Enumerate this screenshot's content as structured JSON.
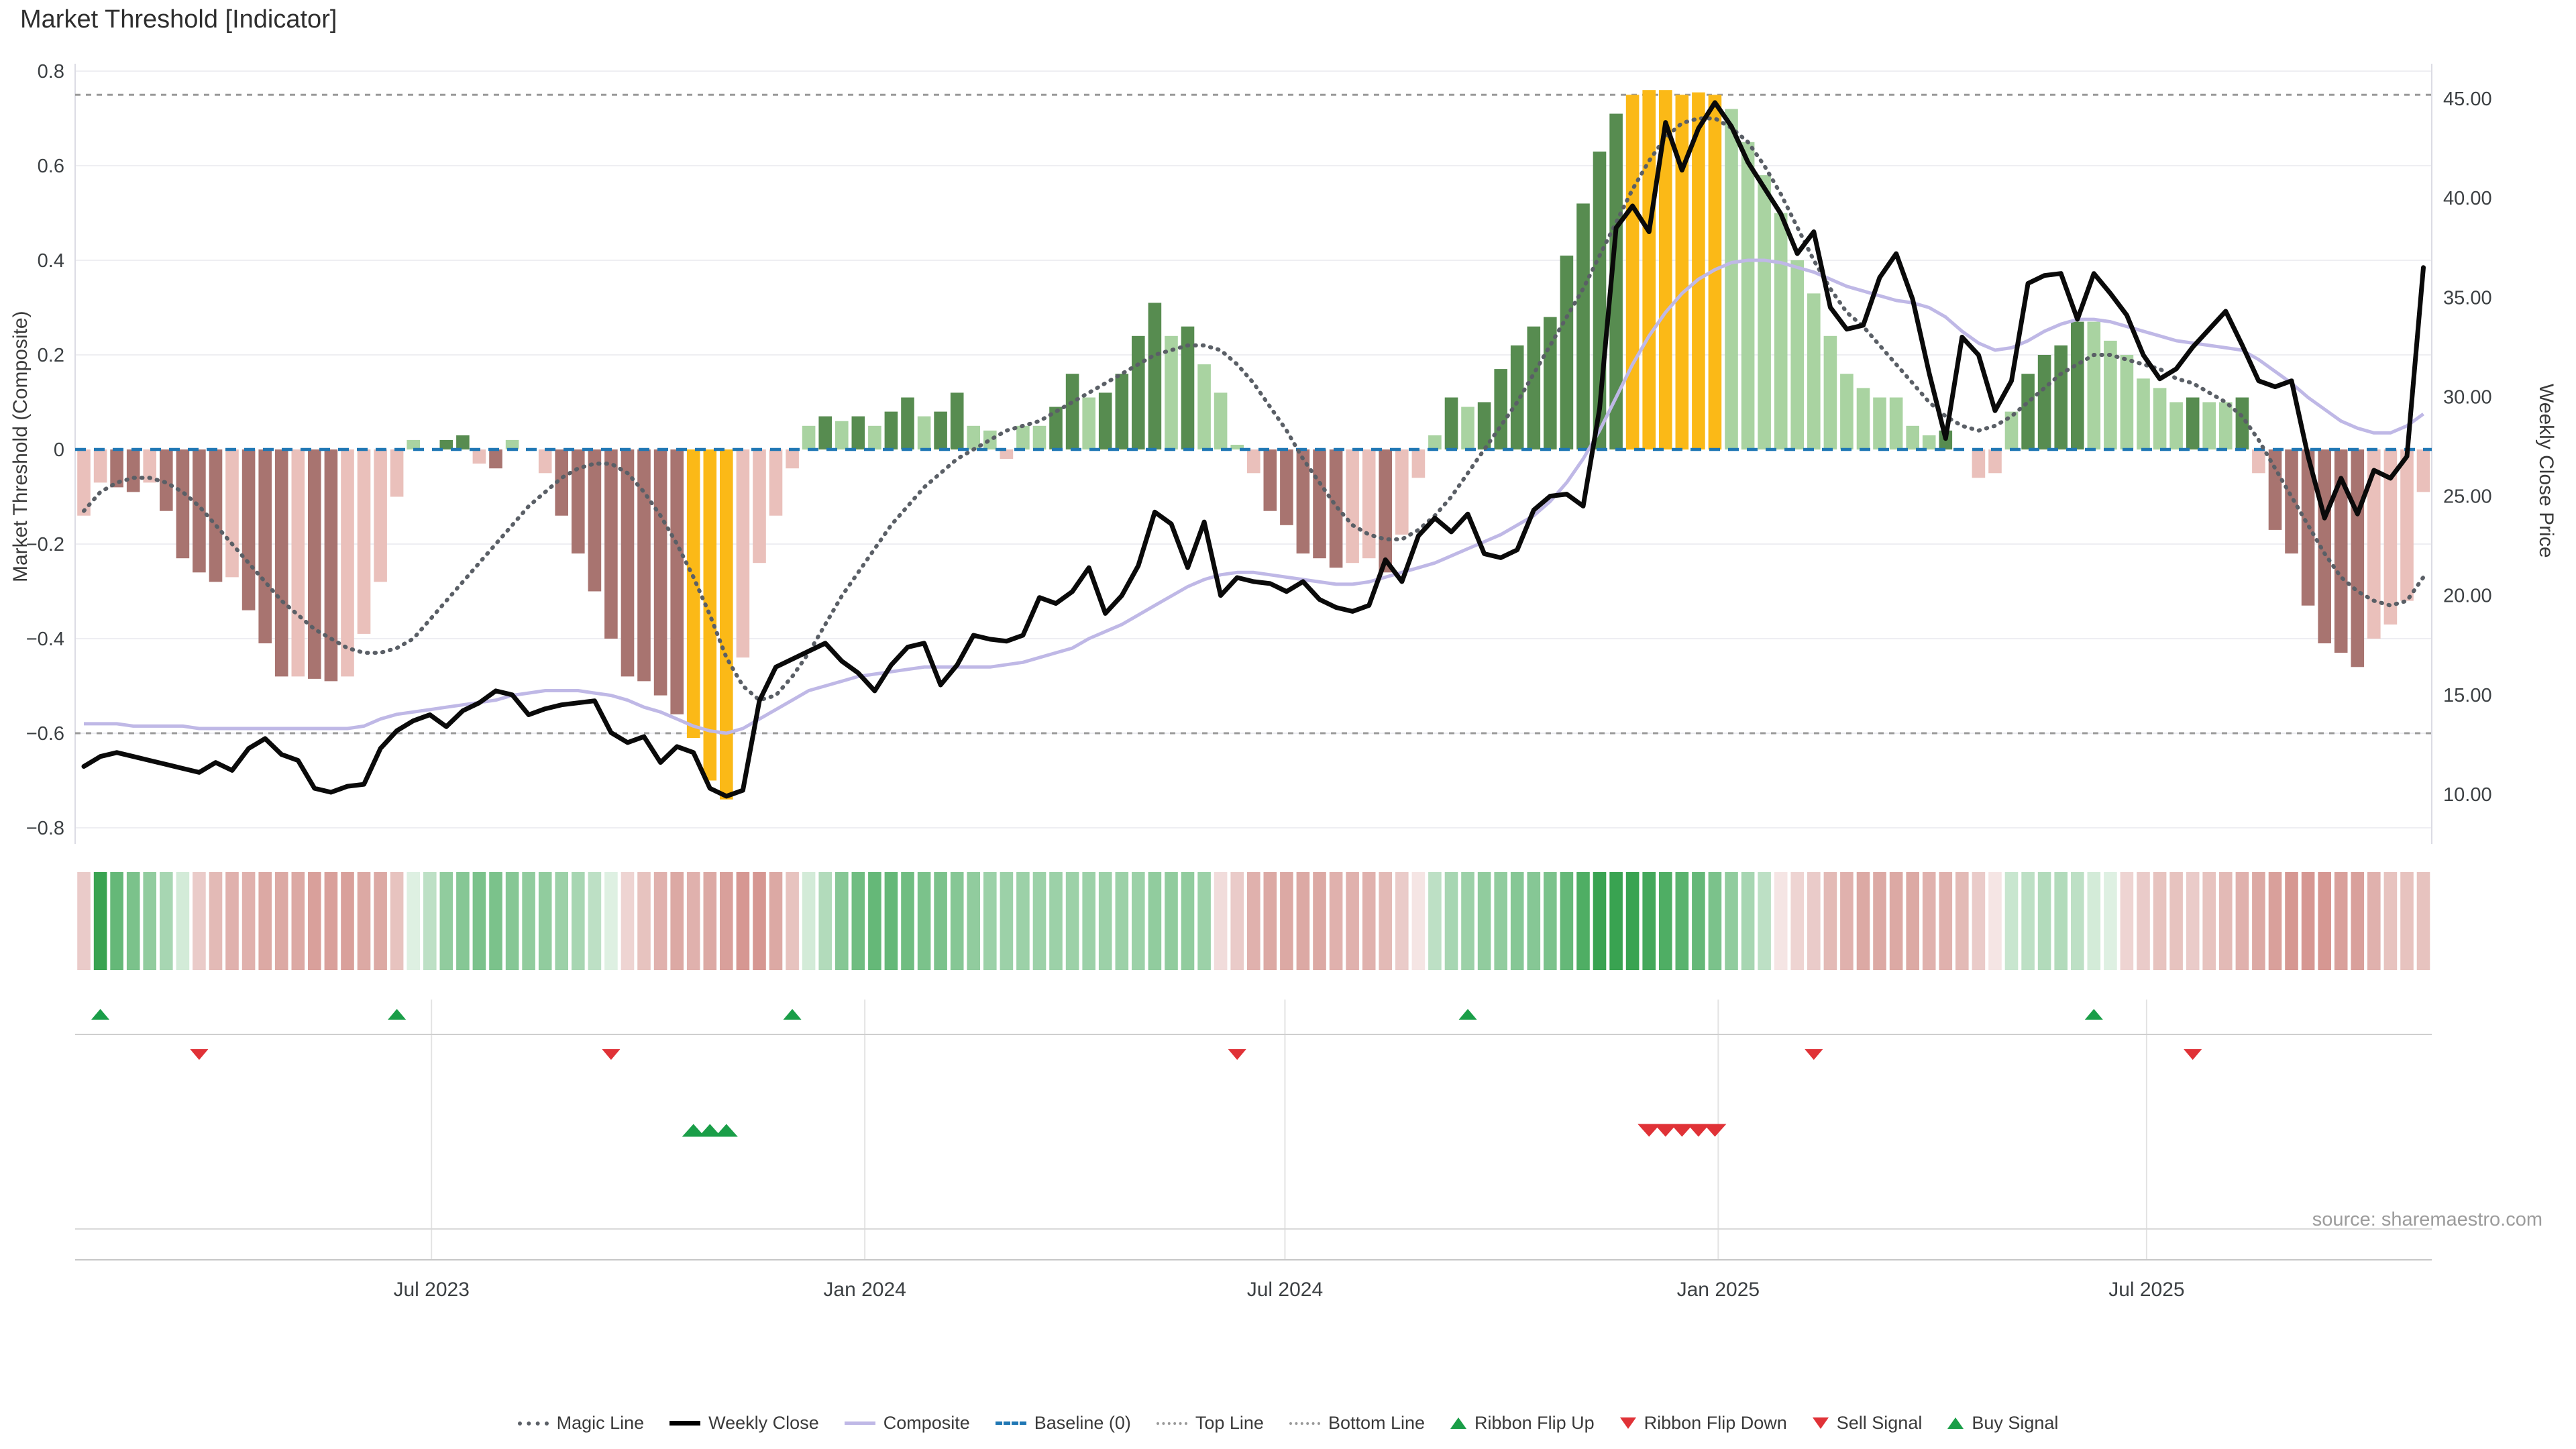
{
  "title": "Market Threshold [Indicator]",
  "source": "source: sharemaestro.com",
  "axes": {
    "left_title": "Market Threshold (Composite)",
    "right_title": "Weekly Close Price",
    "left_ticks": [
      {
        "label": "0.8",
        "value": 0.8
      },
      {
        "label": "0.6",
        "value": 0.6
      },
      {
        "label": "0.4",
        "value": 0.4
      },
      {
        "label": "0.2",
        "value": 0.2
      },
      {
        "label": "0",
        "value": 0
      },
      {
        "label": "−0.2",
        "value": -0.2
      },
      {
        "label": "−0.4",
        "value": -0.4
      },
      {
        "label": "−0.6",
        "value": -0.6
      },
      {
        "label": "−0.8",
        "value": -0.8
      }
    ],
    "right_ticks": [
      {
        "label": "45.00",
        "value": 45
      },
      {
        "label": "40.00",
        "value": 40
      },
      {
        "label": "35.00",
        "value": 35
      },
      {
        "label": "30.00",
        "value": 30
      },
      {
        "label": "25.00",
        "value": 25
      },
      {
        "label": "20.00",
        "value": 20
      },
      {
        "label": "15.00",
        "value": 15
      },
      {
        "label": "10.00",
        "value": 10
      }
    ],
    "x_ticks": [
      {
        "label": "Jul 2023",
        "week": 21.1
      },
      {
        "label": "Jan 2024",
        "week": 47.4
      },
      {
        "label": "Jul 2024",
        "week": 72.9
      },
      {
        "label": "Jan 2025",
        "week": 99.2
      },
      {
        "label": "Jul 2025",
        "week": 125.2
      }
    ],
    "left_range": [
      -0.8,
      0.8
    ],
    "right_range": [
      10,
      45
    ]
  },
  "colors": {
    "gold": "#fbb917",
    "pos_dark": "#578c50",
    "pos_light": "#a9d3a1",
    "neg_dark": "#a87470",
    "neg_light": "#eac0bb",
    "ribbon_green": "#2e9e47",
    "ribbon_red": "#bf5f57",
    "baseline_blue": "#1f77b4",
    "magic_gray": "#5a5f66",
    "line_gray": "#9a9a9a",
    "composite_purple": "#bfb8e6",
    "weekly_black": "#0a0a0a",
    "signal_green": "#1a9e48",
    "signal_red": "#e03237"
  },
  "chart_data": {
    "type": "bar",
    "note": "weekly combo chart: composite indicator bars (left axis) + price/indicator lines (right/left axes)",
    "top_line": 0.75,
    "bottom_line": -0.6,
    "baseline": 0,
    "composite_bars": [
      -0.14,
      -0.07,
      -0.08,
      -0.09,
      -0.07,
      -0.13,
      -0.23,
      -0.26,
      -0.28,
      -0.27,
      -0.34,
      -0.41,
      -0.48,
      -0.48,
      -0.485,
      -0.49,
      -0.48,
      -0.39,
      -0.28,
      -0.1,
      0.02,
      0.0,
      0.02,
      0.03,
      -0.03,
      -0.04,
      0.02,
      0.0,
      -0.05,
      -0.14,
      -0.22,
      -0.3,
      -0.4,
      -0.48,
      -0.49,
      -0.52,
      -0.56,
      -0.61,
      -0.7,
      -0.74,
      -0.44,
      -0.24,
      -0.14,
      -0.04,
      0.05,
      0.07,
      0.06,
      0.07,
      0.05,
      0.08,
      0.11,
      0.07,
      0.08,
      0.12,
      0.05,
      0.04,
      -0.02,
      0.05,
      0.05,
      0.09,
      0.16,
      0.11,
      0.12,
      0.16,
      0.24,
      0.31,
      0.24,
      0.26,
      0.18,
      0.12,
      0.01,
      -0.05,
      -0.13,
      -0.16,
      -0.22,
      -0.23,
      -0.25,
      -0.24,
      -0.23,
      -0.26,
      -0.18,
      -0.06,
      0.03,
      0.11,
      0.09,
      0.1,
      0.17,
      0.22,
      0.26,
      0.28,
      0.41,
      0.52,
      0.63,
      0.71,
      0.75,
      0.76,
      0.76,
      0.75,
      0.755,
      0.75,
      0.72,
      0.65,
      0.58,
      0.5,
      0.4,
      0.33,
      0.24,
      0.16,
      0.13,
      0.11,
      0.11,
      0.05,
      0.03,
      0.04,
      0.0,
      -0.06,
      -0.05,
      0.08,
      0.16,
      0.2,
      0.22,
      0.27,
      0.27,
      0.23,
      0.2,
      0.15,
      0.13,
      0.1,
      0.11,
      0.1,
      0.1,
      0.11,
      -0.05,
      -0.17,
      -0.22,
      -0.33,
      -0.41,
      -0.43,
      -0.46,
      -0.4,
      -0.37,
      -0.32,
      -0.09
    ],
    "weekly_close": [
      11.4,
      11.9,
      12.1,
      11.9,
      11.7,
      11.5,
      11.3,
      11.1,
      11.6,
      11.2,
      12.3,
      12.8,
      12.0,
      11.7,
      10.3,
      10.1,
      10.4,
      10.5,
      12.3,
      13.2,
      13.7,
      14.0,
      13.4,
      14.2,
      14.6,
      15.2,
      15.0,
      14.0,
      14.3,
      14.5,
      14.6,
      14.7,
      13.1,
      12.6,
      12.9,
      11.6,
      12.4,
      12.1,
      10.3,
      9.9,
      10.2,
      14.7,
      16.4,
      16.8,
      17.2,
      17.6,
      16.7,
      16.1,
      15.2,
      16.5,
      17.4,
      17.6,
      15.5,
      16.5,
      18.0,
      17.8,
      17.7,
      18.0,
      19.9,
      19.6,
      20.2,
      21.4,
      19.1,
      20.0,
      21.5,
      24.2,
      23.6,
      21.4,
      23.7,
      20.0,
      20.9,
      20.7,
      20.6,
      20.2,
      20.7,
      19.8,
      19.4,
      19.2,
      19.5,
      21.8,
      20.7,
      23.0,
      23.9,
      23.2,
      24.1,
      22.1,
      21.9,
      22.3,
      24.3,
      25.0,
      25.1,
      24.5,
      29.4,
      38.5,
      39.6,
      38.3,
      43.8,
      41.4,
      43.5,
      44.8,
      43.6,
      41.8,
      40.5,
      39.2,
      37.2,
      38.3,
      34.5,
      33.4,
      33.6,
      36.0,
      37.2,
      34.9,
      31.2,
      27.9,
      33.0,
      32.1,
      29.3,
      30.8,
      35.7,
      36.1,
      36.2,
      33.9,
      36.2,
      35.2,
      34.1,
      32.1,
      30.9,
      31.4,
      32.5,
      33.4,
      34.3,
      32.6,
      30.8,
      30.5,
      30.8,
      27.0,
      23.9,
      25.9,
      24.1,
      26.3,
      25.9,
      27.0,
      36.5
    ],
    "magic_line": [
      -0.13,
      -0.09,
      -0.07,
      -0.06,
      -0.06,
      -0.07,
      -0.09,
      -0.12,
      -0.16,
      -0.2,
      -0.24,
      -0.28,
      -0.32,
      -0.35,
      -0.38,
      -0.4,
      -0.42,
      -0.43,
      -0.43,
      -0.42,
      -0.4,
      -0.36,
      -0.32,
      -0.28,
      -0.24,
      -0.2,
      -0.16,
      -0.12,
      -0.09,
      -0.06,
      -0.04,
      -0.03,
      -0.03,
      -0.05,
      -0.09,
      -0.14,
      -0.2,
      -0.27,
      -0.35,
      -0.44,
      -0.5,
      -0.53,
      -0.52,
      -0.48,
      -0.43,
      -0.37,
      -0.31,
      -0.26,
      -0.21,
      -0.16,
      -0.12,
      -0.08,
      -0.05,
      -0.02,
      0.0,
      0.02,
      0.04,
      0.05,
      0.06,
      0.08,
      0.1,
      0.12,
      0.14,
      0.16,
      0.18,
      0.2,
      0.21,
      0.22,
      0.22,
      0.21,
      0.18,
      0.14,
      0.09,
      0.04,
      -0.02,
      -0.07,
      -0.12,
      -0.16,
      -0.18,
      -0.19,
      -0.19,
      -0.17,
      -0.14,
      -0.1,
      -0.05,
      0.0,
      0.05,
      0.1,
      0.16,
      0.22,
      0.28,
      0.34,
      0.41,
      0.48,
      0.55,
      0.61,
      0.66,
      0.69,
      0.7,
      0.7,
      0.68,
      0.65,
      0.6,
      0.54,
      0.47,
      0.4,
      0.34,
      0.29,
      0.26,
      0.22,
      0.18,
      0.14,
      0.1,
      0.07,
      0.05,
      0.04,
      0.05,
      0.07,
      0.1,
      0.13,
      0.16,
      0.18,
      0.2,
      0.2,
      0.19,
      0.18,
      0.17,
      0.15,
      0.14,
      0.12,
      0.1,
      0.07,
      0.02,
      -0.04,
      -0.1,
      -0.16,
      -0.22,
      -0.27,
      -0.3,
      -0.32,
      -0.33,
      -0.32,
      -0.27
    ],
    "composite_line": [
      -0.58,
      -0.58,
      -0.58,
      -0.585,
      -0.585,
      -0.585,
      -0.585,
      -0.59,
      -0.59,
      -0.59,
      -0.59,
      -0.59,
      -0.59,
      -0.59,
      -0.59,
      -0.59,
      -0.59,
      -0.585,
      -0.57,
      -0.56,
      -0.555,
      -0.55,
      -0.545,
      -0.54,
      -0.535,
      -0.53,
      -0.52,
      -0.515,
      -0.51,
      -0.51,
      -0.51,
      -0.515,
      -0.52,
      -0.53,
      -0.545,
      -0.555,
      -0.57,
      -0.585,
      -0.595,
      -0.6,
      -0.59,
      -0.57,
      -0.55,
      -0.53,
      -0.51,
      -0.5,
      -0.49,
      -0.48,
      -0.475,
      -0.47,
      -0.465,
      -0.46,
      -0.46,
      -0.46,
      -0.46,
      -0.46,
      -0.455,
      -0.45,
      -0.44,
      -0.43,
      -0.42,
      -0.4,
      -0.385,
      -0.37,
      -0.35,
      -0.33,
      -0.31,
      -0.29,
      -0.275,
      -0.265,
      -0.26,
      -0.26,
      -0.265,
      -0.27,
      -0.275,
      -0.28,
      -0.285,
      -0.285,
      -0.28,
      -0.27,
      -0.26,
      -0.25,
      -0.24,
      -0.225,
      -0.21,
      -0.195,
      -0.18,
      -0.16,
      -0.14,
      -0.11,
      -0.07,
      -0.02,
      0.04,
      0.11,
      0.18,
      0.24,
      0.29,
      0.33,
      0.36,
      0.38,
      0.395,
      0.4,
      0.4,
      0.395,
      0.385,
      0.375,
      0.36,
      0.345,
      0.335,
      0.325,
      0.315,
      0.31,
      0.3,
      0.28,
      0.25,
      0.225,
      0.21,
      0.215,
      0.23,
      0.25,
      0.265,
      0.275,
      0.275,
      0.27,
      0.26,
      0.25,
      0.24,
      0.23,
      0.225,
      0.22,
      0.215,
      0.21,
      0.19,
      0.165,
      0.14,
      0.11,
      0.085,
      0.06,
      0.045,
      0.035,
      0.035,
      0.05,
      0.075
    ],
    "ribbon": [
      -0.3,
      0.9,
      0.7,
      0.6,
      0.5,
      0.4,
      0.2,
      -0.3,
      -0.4,
      -0.45,
      -0.45,
      -0.5,
      -0.5,
      -0.5,
      -0.55,
      -0.55,
      -0.55,
      -0.5,
      -0.5,
      -0.35,
      0.15,
      0.3,
      0.5,
      0.55,
      0.6,
      0.6,
      0.55,
      0.5,
      0.5,
      0.45,
      0.4,
      0.3,
      0.15,
      -0.25,
      -0.35,
      -0.45,
      -0.5,
      -0.45,
      -0.5,
      -0.55,
      -0.6,
      -0.6,
      -0.5,
      -0.35,
      0.2,
      0.35,
      0.55,
      0.65,
      0.7,
      0.7,
      0.65,
      0.6,
      0.6,
      0.55,
      0.5,
      0.45,
      0.45,
      0.45,
      0.45,
      0.45,
      0.45,
      0.45,
      0.45,
      0.45,
      0.45,
      0.5,
      0.5,
      0.5,
      0.45,
      -0.2,
      -0.3,
      -0.45,
      -0.5,
      -0.5,
      -0.5,
      -0.5,
      -0.45,
      -0.45,
      -0.45,
      -0.4,
      -0.3,
      -0.15,
      0.3,
      0.4,
      0.45,
      0.5,
      0.5,
      0.55,
      0.55,
      0.6,
      0.7,
      0.8,
      0.9,
      0.9,
      0.9,
      0.85,
      0.8,
      0.75,
      0.7,
      0.6,
      0.5,
      0.4,
      0.3,
      -0.15,
      -0.25,
      -0.3,
      -0.4,
      -0.45,
      -0.5,
      -0.5,
      -0.5,
      -0.5,
      -0.45,
      -0.45,
      -0.4,
      -0.3,
      -0.15,
      0.25,
      0.3,
      0.35,
      0.35,
      0.3,
      0.2,
      0.15,
      -0.25,
      -0.3,
      -0.35,
      -0.35,
      -0.3,
      -0.35,
      -0.4,
      -0.45,
      -0.5,
      -0.55,
      -0.6,
      -0.6,
      -0.6,
      -0.55,
      -0.55,
      -0.45,
      -0.35,
      -0.35,
      -0.35
    ]
  },
  "signals": {
    "ribbon_flip_up_weeks": [
      1,
      19,
      43,
      84,
      122
    ],
    "ribbon_flip_down_weeks": [
      7,
      32,
      70,
      105,
      128
    ],
    "buy_weeks": [
      37,
      38,
      39
    ],
    "sell_weeks": [
      95,
      96,
      97,
      98,
      99
    ]
  },
  "legend": [
    {
      "label": "Magic Line",
      "marker": "dotted-dark"
    },
    {
      "label": "Weekly Close",
      "marker": "solid-black"
    },
    {
      "label": "Composite",
      "marker": "solid-purple"
    },
    {
      "label": "Baseline (0)",
      "marker": "dashed-blue"
    },
    {
      "label": "Top Line",
      "marker": "dotted-gray"
    },
    {
      "label": "Bottom Line",
      "marker": "dotted-gray"
    },
    {
      "label": "Ribbon Flip Up",
      "marker": "tri-up"
    },
    {
      "label": "Ribbon Flip Down",
      "marker": "tri-down"
    },
    {
      "label": "Sell Signal",
      "marker": "tri-down"
    },
    {
      "label": "Buy Signal",
      "marker": "tri-up"
    }
  ]
}
